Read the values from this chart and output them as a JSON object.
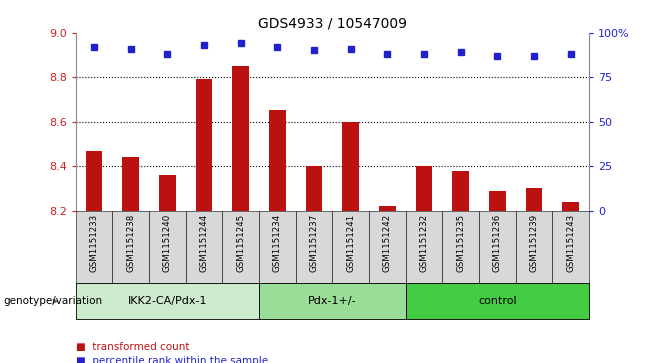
{
  "title": "GDS4933 / 10547009",
  "samples": [
    "GSM1151233",
    "GSM1151238",
    "GSM1151240",
    "GSM1151244",
    "GSM1151245",
    "GSM1151234",
    "GSM1151237",
    "GSM1151241",
    "GSM1151242",
    "GSM1151232",
    "GSM1151235",
    "GSM1151236",
    "GSM1151239",
    "GSM1151243"
  ],
  "bar_values": [
    8.47,
    8.44,
    8.36,
    8.79,
    8.85,
    8.65,
    8.4,
    8.6,
    8.22,
    8.4,
    8.38,
    8.29,
    8.3,
    8.24
  ],
  "dot_values": [
    92,
    91,
    88,
    93,
    94,
    92,
    90,
    91,
    88,
    88,
    89,
    87,
    87,
    88
  ],
  "bar_color": "#bb1111",
  "dot_color": "#2222cc",
  "groups": [
    {
      "label": "IKK2-CA/Pdx-1",
      "start": 0,
      "end": 5,
      "color": "#cceacc"
    },
    {
      "label": "Pdx-1+/-",
      "start": 5,
      "end": 9,
      "color": "#99dd99"
    },
    {
      "label": "control",
      "start": 9,
      "end": 14,
      "color": "#44cc44"
    }
  ],
  "group_label_prefix": "genotype/variation",
  "ylim_left": [
    8.2,
    9.0
  ],
  "ylim_right": [
    0,
    100
  ],
  "yticks_left": [
    8.2,
    8.4,
    8.6,
    8.8,
    9.0
  ],
  "yticks_right": [
    0,
    25,
    50,
    75,
    100
  ],
  "ytick_right_labels": [
    "0",
    "25",
    "50",
    "75",
    "100%"
  ],
  "legend_bar_label": "transformed count",
  "legend_dot_label": "percentile rank within the sample",
  "tick_color_left": "#cc2222",
  "tick_color_right": "#2222cc",
  "sample_bg_color": "#d8d8d8",
  "grid_yticks": [
    8.4,
    8.6,
    8.8
  ]
}
